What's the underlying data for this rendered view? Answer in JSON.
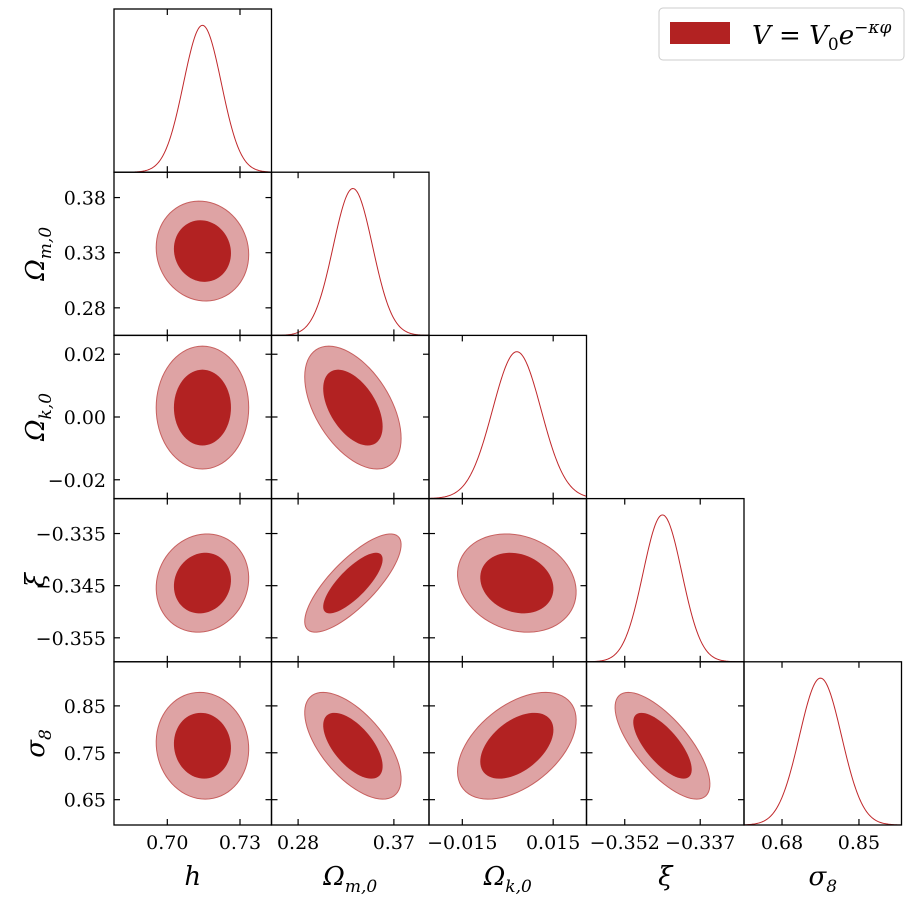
{
  "legend": {
    "label": "V = V0e^(−κφ)",
    "color": "#b22222"
  },
  "colors": {
    "inner": "#b22222",
    "outer": "#dea3a4",
    "outer_stroke": "#c7605f",
    "line": "#c0282b"
  },
  "parameters": [
    {
      "name": "h",
      "label": "h"
    },
    {
      "name": "Om",
      "label": "Ωm,0"
    },
    {
      "name": "Ok",
      "label": "Ωk,0"
    },
    {
      "name": "xi",
      "label": "ξ"
    },
    {
      "name": "s8",
      "label": "σ8"
    }
  ],
  "chart_data": {
    "type": "corner",
    "ranges": [
      [
        0.678,
        0.743
      ],
      [
        0.255,
        0.403
      ],
      [
        -0.026,
        0.026
      ],
      [
        -0.3596,
        -0.3283
      ],
      [
        0.596,
        0.944
      ]
    ],
    "xticks": [
      {
        "values": [
          0.7,
          0.73
        ],
        "labels": [
          "0.70",
          "0.73"
        ]
      },
      {
        "values": [
          0.28,
          0.37
        ],
        "labels": [
          "0.28",
          "0.37"
        ]
      },
      {
        "values": [
          -0.015,
          0.015
        ],
        "labels": [
          "−0.015",
          "0.015"
        ]
      },
      {
        "values": [
          -0.352,
          -0.337
        ],
        "labels": [
          "−0.352",
          "−0.337"
        ]
      },
      {
        "values": [
          0.68,
          0.85
        ],
        "labels": [
          "0.68",
          "0.85"
        ]
      }
    ],
    "yticks": [
      null,
      {
        "values": [
          0.28,
          0.33,
          0.38
        ],
        "labels": [
          "0.28",
          "0.33",
          "0.38"
        ]
      },
      {
        "values": [
          -0.02,
          0.0,
          0.02
        ],
        "labels": [
          "−0.02",
          "0.00",
          "0.02"
        ]
      },
      {
        "values": [
          -0.355,
          -0.345,
          -0.335
        ],
        "labels": [
          "−0.355",
          "−0.345",
          "−0.335"
        ]
      },
      {
        "values": [
          0.65,
          0.75,
          0.85
        ],
        "labels": [
          "0.65",
          "0.75",
          "0.85"
        ]
      }
    ],
    "means": [
      0.7145,
      0.3315,
      0.003,
      -0.3445,
      0.765
    ],
    "sigmas": [
      0.0078,
      0.0185,
      0.008,
      0.00385,
      0.0465
    ],
    "correlations": {
      "1,0": -0.07,
      "2,0": 0.0,
      "2,1": -0.5,
      "3,0": 0.1,
      "3,1": 0.78,
      "3,2": -0.18,
      "4,0": -0.06,
      "4,1": -0.62,
      "4,2": 0.48,
      "4,3": -0.72
    },
    "contour_levels": [
      "68%",
      "95%"
    ],
    "grid": false,
    "legend_position": "top-right"
  }
}
